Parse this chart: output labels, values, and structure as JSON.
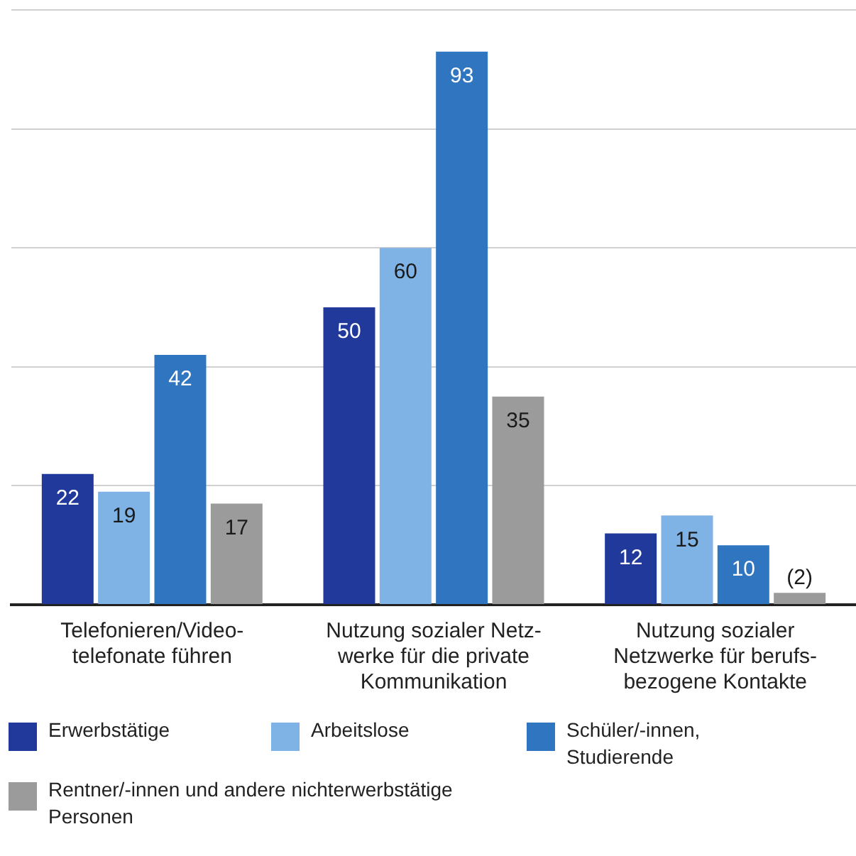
{
  "chart_data": {
    "type": "bar",
    "categories": [
      "Telefonieren/Video-telefonate führen",
      "Nutzung sozialer Netz-werke für die private Kommunikation",
      "Nutzung sozialer Netzwerke für berufs-bezogene Kontakte"
    ],
    "series": [
      {
        "name": "Erwerbstätige",
        "color": "#21399a",
        "values": [
          22,
          50,
          12
        ],
        "value_labels": [
          "22",
          "50",
          "12"
        ]
      },
      {
        "name": "Arbeitslose",
        "color": "#7fb2e5",
        "values": [
          19,
          60,
          15
        ],
        "value_labels": [
          "19",
          "60",
          "15"
        ]
      },
      {
        "name": "Schüler/-innen, Studierende",
        "color": "#2f75bf",
        "values": [
          42,
          93,
          10
        ],
        "value_labels": [
          "42",
          "93",
          "10"
        ]
      },
      {
        "name": "Rentner/-innen und andere nichterwerbstätige Personen",
        "color": "#9b9b9b",
        "values": [
          17,
          35,
          2
        ],
        "value_labels": [
          "17",
          "35",
          "(2)"
        ]
      }
    ],
    "ylim": [
      0,
      100
    ],
    "yticks": [
      {
        "value": 0,
        "label": null
      },
      {
        "value": 20,
        "label": null
      },
      {
        "value": 40,
        "label": null
      },
      {
        "value": 60,
        "label": null
      },
      {
        "value": 80,
        "label": null
      },
      {
        "value": 100,
        "label": null
      }
    ],
    "grid": "y",
    "tick_labels": "x",
    "legend": "bottom"
  }
}
